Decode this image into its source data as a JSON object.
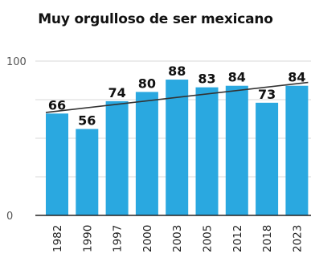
{
  "chart_data": {
    "type": "bar",
    "title": "Muy orgulloso de ser mexicano",
    "categories": [
      "1982",
      "1990",
      "1997",
      "2000",
      "2003",
      "2005",
      "2012",
      "2018",
      "2023"
    ],
    "values": [
      66,
      56,
      74,
      80,
      88,
      83,
      84,
      73,
      84
    ],
    "series": [
      {
        "values": [
          66,
          56,
          74,
          80,
          88,
          83,
          84,
          73,
          84
        ]
      }
    ],
    "yticks": [
      "0",
      "100"
    ],
    "ylim": [
      0,
      100
    ],
    "xlabel": "",
    "ylabel": "",
    "trendline": true,
    "grid": true,
    "bar_color": "#2aa8e0",
    "legend": "none"
  }
}
